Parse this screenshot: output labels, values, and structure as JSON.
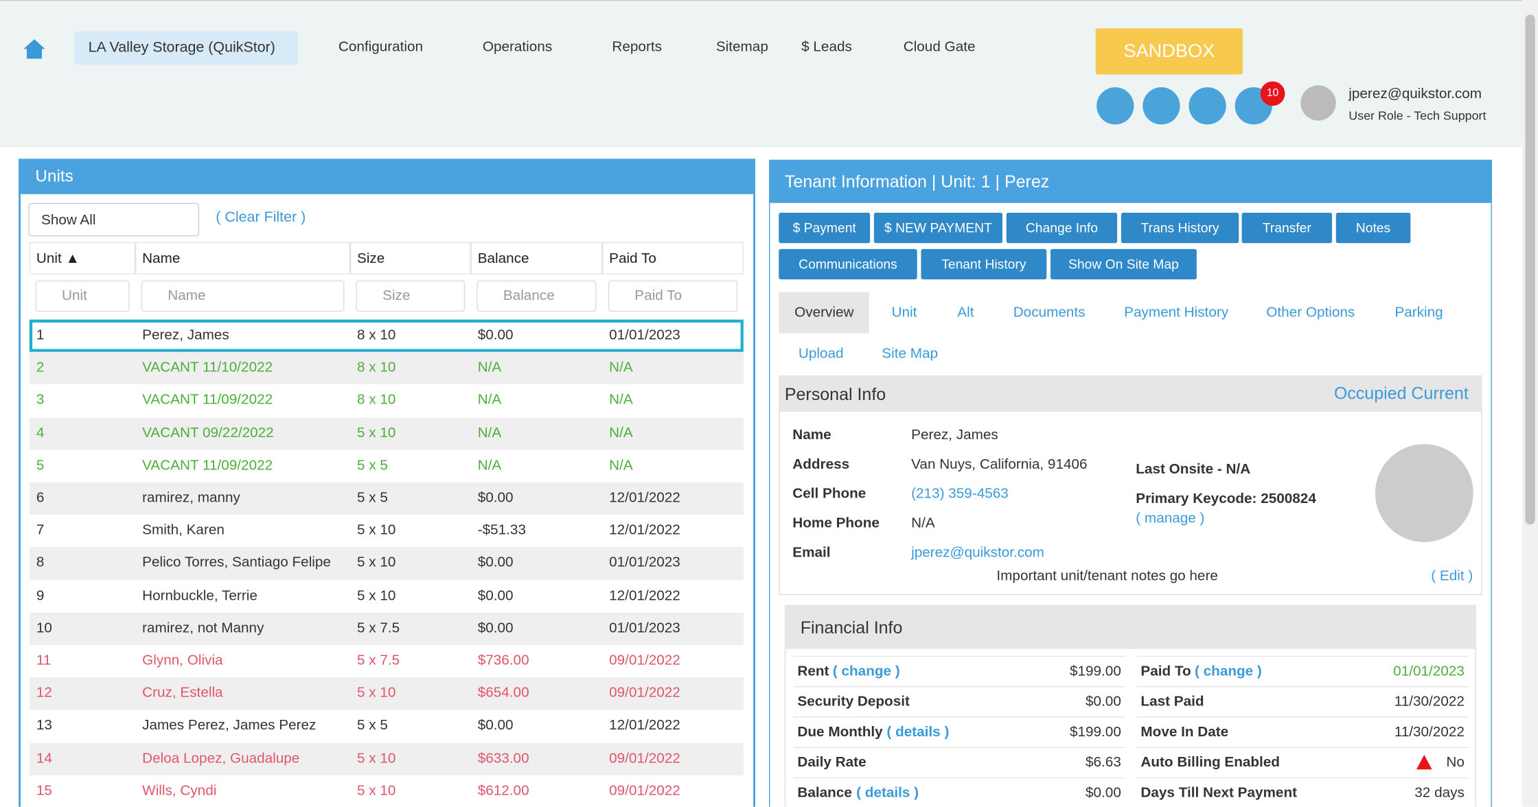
{
  "nav": {
    "location": "LA Valley Storage (QuikStor)",
    "items": [
      "Configuration",
      "Operations",
      "Reports",
      "Sitemap",
      "$ Leads",
      "Cloud Gate"
    ],
    "sandbox": "SANDBOX",
    "badge": "10",
    "user_email": "jperez@quikstor.com",
    "user_role": "User Role - Tech Support"
  },
  "units": {
    "title": "Units",
    "filter": "Show All",
    "clear_filter": "( Clear Filter )",
    "columns": [
      "Unit ▲",
      "Name",
      "Size",
      "Balance",
      "Paid To"
    ],
    "placeholders": [
      "Unit",
      "Name",
      "Size",
      "Balance",
      "Paid To"
    ],
    "rows": [
      [
        "1",
        "Perez, James",
        "8 x 10",
        "$0.00",
        "01/01/2023"
      ],
      [
        "2",
        "VACANT 11/10/2022",
        "8 x 10",
        "N/A",
        "N/A"
      ],
      [
        "3",
        "VACANT 11/09/2022",
        "8 x 10",
        "N/A",
        "N/A"
      ],
      [
        "4",
        "VACANT 09/22/2022",
        "5 x 10",
        "N/A",
        "N/A"
      ],
      [
        "5",
        "VACANT 11/09/2022",
        "5 x 5",
        "N/A",
        "N/A"
      ],
      [
        "6",
        "ramirez, manny",
        "5 x 5",
        "$0.00",
        "12/01/2022"
      ],
      [
        "7",
        "Smith, Karen",
        "5 x 10",
        "-$51.33",
        "12/01/2022"
      ],
      [
        "8",
        "Pelico Torres, Santiago Felipe",
        "5 x 10",
        "$0.00",
        "01/01/2023"
      ],
      [
        "9",
        "Hornbuckle, Terrie",
        "5 x 10",
        "$0.00",
        "12/01/2022"
      ],
      [
        "10",
        "ramirez, not Manny",
        "5 x 7.5",
        "$0.00",
        "01/01/2023"
      ],
      [
        "11",
        "Glynn, Olivia",
        "5 x 7.5",
        "$736.00",
        "09/01/2022"
      ],
      [
        "12",
        "Cruz, Estella",
        "5 x 10",
        "$654.00",
        "09/01/2022"
      ],
      [
        "13",
        "James Perez, James Perez",
        "5 x 5",
        "$0.00",
        "12/01/2022"
      ],
      [
        "14",
        "Deloa Lopez, Guadalupe",
        "5 x 10",
        "$633.00",
        "09/01/2022"
      ],
      [
        "15",
        "Wills, Cyndi",
        "5 x 10",
        "$612.00",
        "09/01/2022"
      ]
    ],
    "row_colors": [
      "#333333",
      "#4caf3a",
      "#4caf3a",
      "#4caf3a",
      "#4caf3a",
      "#333333",
      "#333333",
      "#333333",
      "#333333",
      "#333333",
      "#e0556a",
      "#e0556a",
      "#333333",
      "#e0556a",
      "#e0556a"
    ]
  },
  "tenant": {
    "title": "Tenant Information | Unit: 1 | Perez",
    "buttons": [
      "$ Payment",
      "$ NEW PAYMENT",
      "Change Info",
      "Trans History",
      "Transfer",
      "Notes",
      "Communications",
      "Tenant History",
      "Show On Site Map"
    ],
    "tabs": [
      "Overview",
      "Unit",
      "Alt",
      "Documents",
      "Payment History",
      "Other Options",
      "Parking",
      "Upload",
      "Site Map"
    ],
    "personal_title": "Personal Info",
    "status": "Occupied Current",
    "fields": [
      [
        "Name",
        "Perez, James"
      ],
      [
        "Address",
        "Van Nuys, California, 91406"
      ],
      [
        "Cell Phone",
        "(213) 359-4563"
      ],
      [
        "Home Phone",
        "N/A"
      ],
      [
        "Email",
        "jperez@quikstor.com"
      ]
    ],
    "last_onsite": "Last Onsite - N/A",
    "keycode": "Primary Keycode: 2500824",
    "manage": "( manage )",
    "notes": "Important unit/tenant notes go here",
    "edit": "( Edit )",
    "financial_title": "Financial Info",
    "financial_left": [
      [
        "Rent",
        "( change )",
        "$199.00"
      ],
      [
        "Security Deposit",
        "",
        "$0.00"
      ],
      [
        "Due Monthly",
        "( details )",
        "$199.00"
      ],
      [
        "Daily Rate",
        "",
        "$6.63"
      ],
      [
        "Balance",
        "( details )",
        "$0.00"
      ]
    ],
    "financial_right": [
      [
        "Paid To",
        "( change )",
        "01/01/2023"
      ],
      [
        "Last Paid",
        "",
        "11/30/2022"
      ],
      [
        "Move In Date",
        "",
        "11/30/2022"
      ],
      [
        "Auto Billing Enabled",
        "",
        "No"
      ],
      [
        "Days Till Next Payment",
        "",
        "32 days"
      ]
    ]
  }
}
